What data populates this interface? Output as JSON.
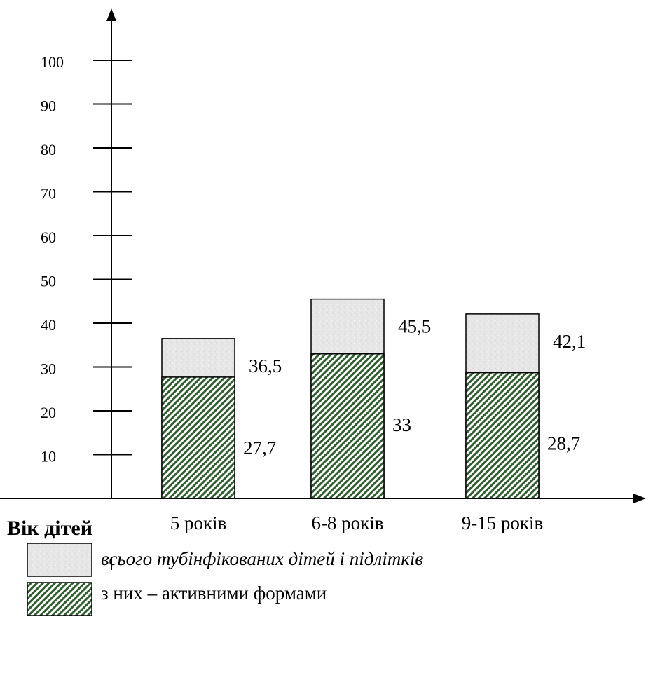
{
  "chart_data": {
    "type": "bar",
    "stacked": false,
    "overlapping": true,
    "categories": [
      "5 років",
      "6-8 років",
      "9-15 років"
    ],
    "series": [
      {
        "name": "всього тубінфікованих дітей і підлітків",
        "values": [
          36.5,
          45.5,
          42.1
        ],
        "value_labels": [
          "36,5",
          "45,5",
          "42,1"
        ],
        "color": "#e9e9e9",
        "pattern": "speckled"
      },
      {
        "name": "з них – активними формами",
        "values": [
          27.7,
          33,
          28.7
        ],
        "value_labels": [
          "27,7",
          "33",
          "28,7"
        ],
        "color": "#3c6b3c",
        "pattern": "diagonal-hatch"
      }
    ],
    "y_ticks": [
      "10",
      "20",
      "30",
      "40",
      "50",
      "60",
      "70",
      "80",
      "90",
      "100"
    ],
    "ylim": [
      0,
      110
    ],
    "xlabel": "Вік дітей",
    "ylabel": "",
    "title": "",
    "grid": false,
    "legend": "bottom-left"
  }
}
